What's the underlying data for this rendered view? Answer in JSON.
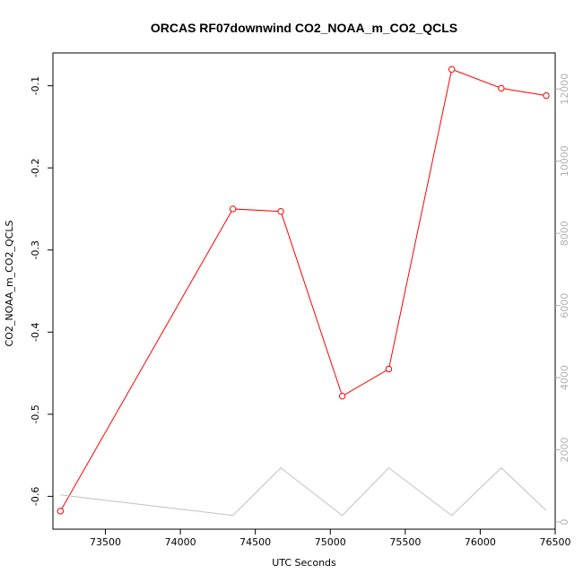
{
  "chart_data": {
    "type": "line",
    "title": "ORCAS RF07downwind CO2_NOAA_m_CO2_QCLS",
    "xlabel": "UTC Seconds",
    "ylabel": "CO2_NOAA_m_CO2_QCLS",
    "xlim": [
      73150,
      76500
    ],
    "ylim": [
      -0.64,
      -0.06
    ],
    "y2lim": [
      -200,
      13000
    ],
    "x_ticks": [
      73500,
      74000,
      74500,
      75000,
      75500,
      76000,
      76500
    ],
    "y_ticks": [
      -0.6,
      -0.5,
      -0.4,
      -0.3,
      -0.2,
      -0.1
    ],
    "y2_ticks": [
      0,
      2000,
      4000,
      6000,
      8000,
      10000,
      12000
    ],
    "grid": false,
    "series": [
      {
        "axis": "left",
        "color": "#ff0000",
        "marker": "open-circle",
        "points": [
          {
            "x": 73200,
            "y": -0.618
          },
          {
            "x": 74350,
            "y": -0.25
          },
          {
            "x": 74670,
            "y": -0.253
          },
          {
            "x": 75080,
            "y": -0.478
          },
          {
            "x": 75390,
            "y": -0.445
          },
          {
            "x": 75810,
            "y": -0.08
          },
          {
            "x": 76140,
            "y": -0.103
          },
          {
            "x": 76440,
            "y": -0.112
          }
        ]
      },
      {
        "axis": "right",
        "color": "#c0c0c0",
        "marker": "none",
        "points": [
          {
            "x": 73200,
            "y": 750
          },
          {
            "x": 74350,
            "y": 180
          },
          {
            "x": 74670,
            "y": 1500
          },
          {
            "x": 75080,
            "y": 180
          },
          {
            "x": 75390,
            "y": 1500
          },
          {
            "x": 75810,
            "y": 180
          },
          {
            "x": 76140,
            "y": 1500
          },
          {
            "x": 76440,
            "y": 320
          }
        ]
      }
    ]
  }
}
